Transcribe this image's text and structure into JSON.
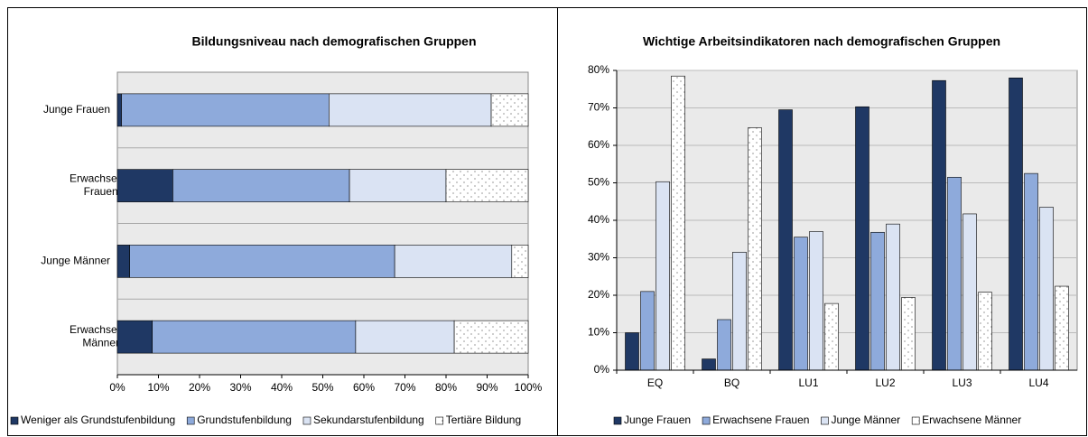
{
  "chart_data": [
    {
      "type": "bar",
      "orientation": "horizontal",
      "stacked": true,
      "title": "Bildungsniveau nach demografischen Gruppen",
      "categories": [
        "Junge Frauen",
        "Erwachsene Frauen",
        "Junge Männer",
        "Erwachsene Männer"
      ],
      "series": [
        {
          "name": "Weniger als Grundstufenbildung",
          "color": "#1f3864",
          "values": [
            1,
            13.5,
            3,
            8.5
          ]
        },
        {
          "name": "Grundstufenbildung",
          "color": "#8eaadb",
          "values": [
            50.5,
            43,
            64.5,
            49.5
          ]
        },
        {
          "name": "Sekundarstufenbildung",
          "color": "#dae3f3",
          "values": [
            39.5,
            23.5,
            28.5,
            24
          ]
        },
        {
          "name": "Tertiäre Bildung",
          "color": "#ffffff",
          "pattern": "dots",
          "values": [
            9,
            20,
            4,
            18
          ]
        }
      ],
      "xlim": [
        0,
        100
      ],
      "xticks": [
        {
          "value": 0,
          "label": "0%"
        },
        {
          "value": 10,
          "label": "10%"
        },
        {
          "value": 20,
          "label": "20%"
        },
        {
          "value": 30,
          "label": "30%"
        },
        {
          "value": 40,
          "label": "40%"
        },
        {
          "value": 50,
          "label": "50%"
        },
        {
          "value": 60,
          "label": "60%"
        },
        {
          "value": 70,
          "label": "70%"
        },
        {
          "value": 80,
          "label": "80%"
        },
        {
          "value": 90,
          "label": "90%"
        },
        {
          "value": 100,
          "label": "100%"
        }
      ],
      "legend": "bottom"
    },
    {
      "type": "bar",
      "orientation": "vertical",
      "stacked": false,
      "title": "Wichtige Arbeitsindikatoren nach demografischen Gruppen",
      "categories": [
        "EQ",
        "BQ",
        "LU1",
        "LU2",
        "LU3",
        "LU4"
      ],
      "series": [
        {
          "name": "Junge Frauen",
          "color": "#1f3864",
          "values": [
            10,
            3,
            69.5,
            70.3,
            77.3,
            78
          ]
        },
        {
          "name": "Erwachsene Frauen",
          "color": "#8eaadb",
          "values": [
            21,
            13.5,
            35.5,
            36.8,
            51.5,
            52.5
          ]
        },
        {
          "name": "Junge Männer",
          "color": "#dae3f3",
          "values": [
            50.3,
            31.5,
            37,
            39,
            41.7,
            43.5
          ]
        },
        {
          "name": "Erwachsene Männer",
          "color": "#ffffff",
          "pattern": "dots",
          "values": [
            78.5,
            64.7,
            17.8,
            19.4,
            20.8,
            22.4
          ]
        }
      ],
      "ylim": [
        0,
        80
      ],
      "yticks": [
        {
          "value": 0,
          "label": "0%"
        },
        {
          "value": 10,
          "label": "10%"
        },
        {
          "value": 20,
          "label": "20%"
        },
        {
          "value": 30,
          "label": "30%"
        },
        {
          "value": 40,
          "label": "40%"
        },
        {
          "value": 50,
          "label": "50%"
        },
        {
          "value": 60,
          "label": "60%"
        },
        {
          "value": 70,
          "label": "70%"
        },
        {
          "value": 80,
          "label": "80%"
        }
      ],
      "grid": true,
      "legend": "bottom"
    }
  ]
}
